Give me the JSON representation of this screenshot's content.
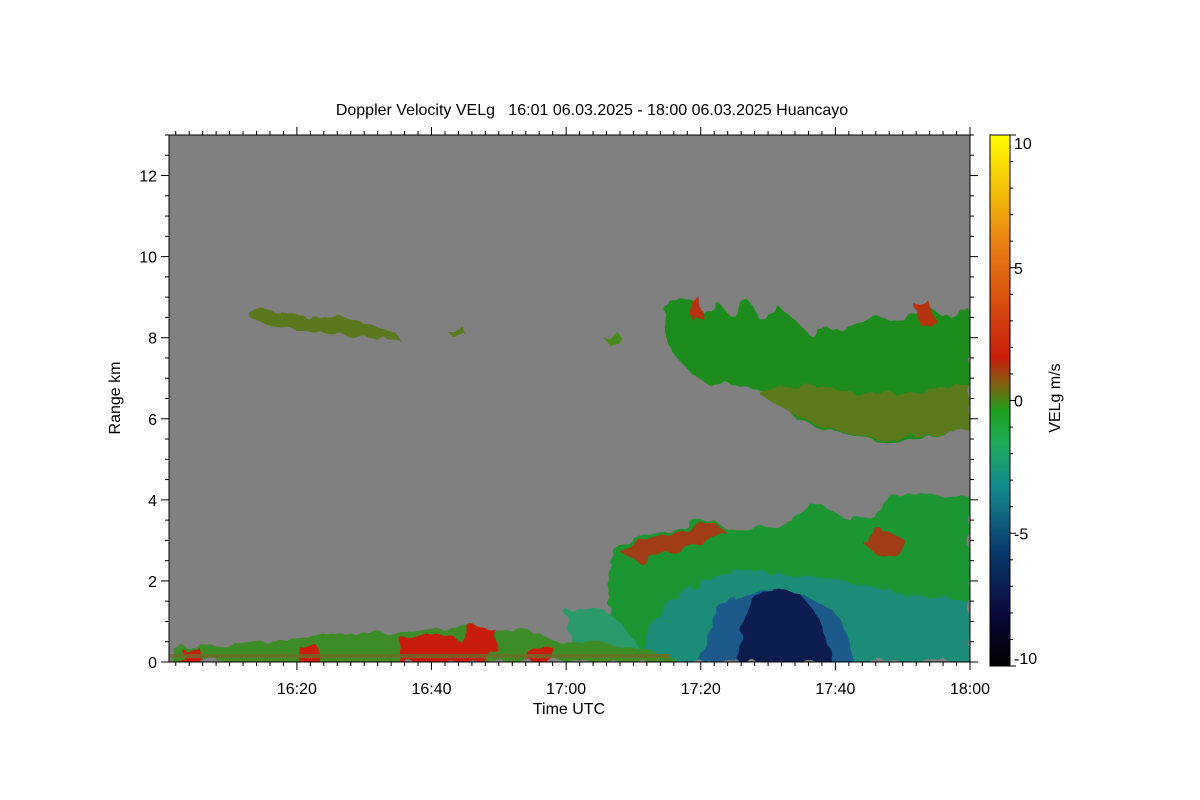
{
  "chart_data": {
    "type": "heatmap",
    "title": "Doppler Velocity VELg   16:01 06.03.2025 - 18:00 06.03.2025 Huancayo",
    "xlabel": "Time UTC",
    "ylabel": "Range km",
    "colorbar_label": "VELg m/s",
    "x_range_minutes_utc": [
      961,
      1080
    ],
    "xticks": [
      {
        "minute": 980,
        "label": "16:20"
      },
      {
        "minute": 1000,
        "label": "16:40"
      },
      {
        "minute": 1020,
        "label": "17:00"
      },
      {
        "minute": 1040,
        "label": "17:20"
      },
      {
        "minute": 1060,
        "label": "17:40"
      },
      {
        "minute": 1080,
        "label": "18:00"
      }
    ],
    "ylim": [
      0,
      13
    ],
    "yticks": [
      0,
      2,
      4,
      6,
      8,
      10,
      12
    ],
    "colorbar_range": [
      -10,
      10
    ],
    "colorbar_ticks": [
      10,
      5,
      0,
      -5,
      -10
    ],
    "colorscale": [
      "#000000",
      "#0a0a3c",
      "#0a3c6e",
      "#148c8c",
      "#1eaa5a",
      "#1ea01e",
      "#6e6e14",
      "#c81e0a",
      "#e67814",
      "#ffff00"
    ],
    "background_color": "#808080",
    "regions": [
      {
        "kind": "surface-clutter",
        "t": [
          961,
          1034
        ],
        "r": [
          0,
          1.2
        ],
        "v": "mixed ±2 (red/green speckle)"
      },
      {
        "kind": "cloud-layer",
        "t": [
          973,
          981
        ],
        "r": [
          7.9,
          8.8
        ],
        "v": "≈0 (olive)"
      },
      {
        "kind": "cloud-layer",
        "t": [
          1004,
          1007
        ],
        "r": [
          8.0,
          8.4
        ],
        "v": "≈0 (olive)"
      },
      {
        "kind": "cloud-layer",
        "t": [
          1036,
          1080
        ],
        "r": [
          5.4,
          9.2
        ],
        "v": "-1 to +2 (green, red tops)"
      },
      {
        "kind": "convective",
        "t": [
          1029,
          1080
        ],
        "r": [
          0,
          4.3
        ],
        "v": "-10 to +2"
      },
      {
        "kind": "downdraft-core",
        "t": [
          1051,
          1061
        ],
        "r": [
          0,
          2.0
        ],
        "v": "≈ -8 to -10 (dark blue)"
      }
    ]
  }
}
